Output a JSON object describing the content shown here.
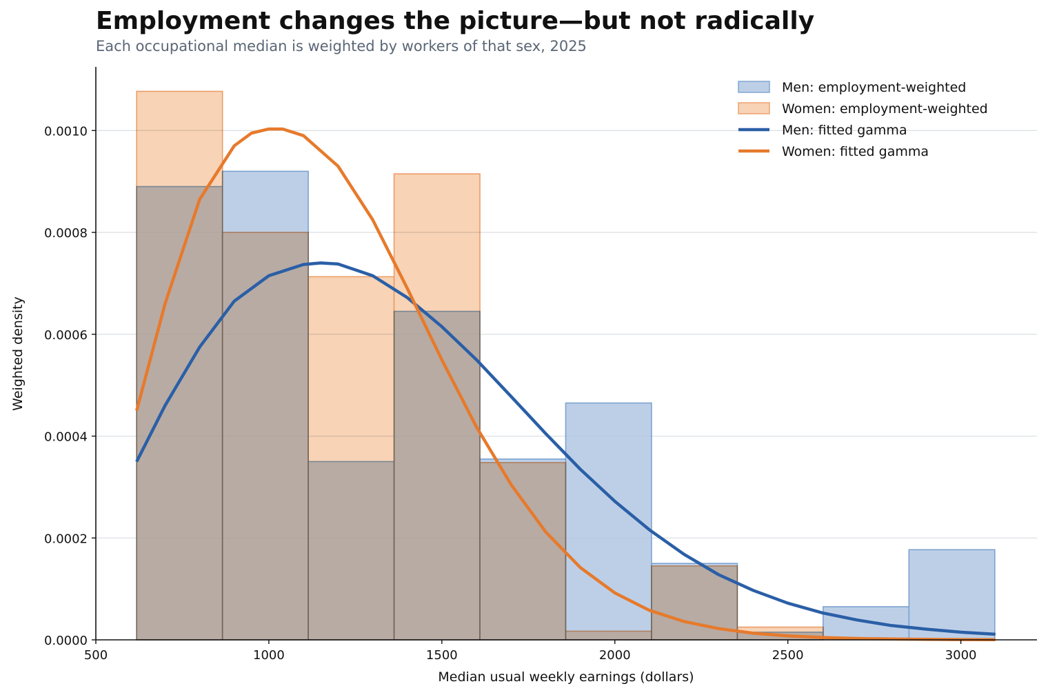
{
  "chart_data": {
    "type": "bar",
    "title": "Employment changes the picture—but not radically",
    "subtitle": "Each occupational median is weighted by workers of that sex, 2025",
    "xlabel": "Median usual weekly earnings (dollars)",
    "ylabel": "Weighted density",
    "xlim": [
      500,
      3220
    ],
    "ylim": [
      0,
      0.001125
    ],
    "xticks": [
      "500",
      "1000",
      "1500",
      "2000",
      "2500",
      "3000"
    ],
    "yticks": [
      "0.0000",
      "0.0002",
      "0.0004",
      "0.0006",
      "0.0008",
      "0.0010"
    ],
    "grid": "horizontal",
    "legend_position": "top-right",
    "bin_edges": [
      618,
      866,
      1114,
      1362,
      1610,
      1858,
      2106,
      2354,
      2602,
      2850,
      3098
    ],
    "series": [
      {
        "name": "Men: employment-weighted",
        "kind": "histogram",
        "color": "#aec5e2",
        "edge_color": "#7ba3d0",
        "values": [
          0.00089,
          0.00092,
          0.00035,
          0.000645,
          0.000355,
          0.000465,
          0.00015,
          1.5e-05,
          6.5e-05,
          0.000177
        ]
      },
      {
        "name": "Women: employment-weighted",
        "kind": "histogram",
        "color": "#f7c9a5",
        "edge_color": "#eb9d68",
        "values": [
          0.001077,
          0.0008,
          0.000713,
          0.000915,
          0.000348,
          1.7e-05,
          0.000145,
          2.5e-05,
          0.0,
          0.0
        ]
      },
      {
        "name": "Men: fitted gamma",
        "kind": "line",
        "color": "#2a5fa6",
        "x": [
          618,
          700,
          800,
          900,
          1000,
          1100,
          1150,
          1200,
          1300,
          1400,
          1500,
          1600,
          1700,
          1800,
          1900,
          2000,
          2100,
          2200,
          2300,
          2400,
          2500,
          2600,
          2700,
          2800,
          2900,
          3000,
          3100
        ],
        "values": [
          0.00035,
          0.00046,
          0.000575,
          0.000665,
          0.000715,
          0.000737,
          0.00074,
          0.000738,
          0.000715,
          0.000672,
          0.000615,
          0.00055,
          0.000478,
          0.000405,
          0.000335,
          0.000272,
          0.000216,
          0.000168,
          0.000128,
          9.7e-05,
          7.2e-05,
          5.3e-05,
          3.9e-05,
          2.8e-05,
          2.1e-05,
          1.5e-05,
          1.1e-05
        ]
      },
      {
        "name": "Women: fitted gamma",
        "kind": "line",
        "color": "#e67a2c",
        "x": [
          618,
          700,
          800,
          900,
          950,
          1000,
          1040,
          1100,
          1200,
          1300,
          1400,
          1500,
          1600,
          1700,
          1800,
          1900,
          2000,
          2100,
          2200,
          2300,
          2400,
          2500,
          2600,
          2700,
          2800,
          2900,
          3000,
          3100
        ],
        "values": [
          0.00045,
          0.00066,
          0.000865,
          0.00097,
          0.000995,
          0.001003,
          0.001003,
          0.00099,
          0.00093,
          0.000825,
          0.00069,
          0.00055,
          0.000418,
          0.000305,
          0.000212,
          0.000142,
          9.2e-05,
          5.8e-05,
          3.6e-05,
          2.2e-05,
          1.3e-05,
          7.8e-06,
          4.6e-06,
          2.7e-06,
          1.6e-06,
          9e-07,
          5e-07,
          3e-07
        ]
      }
    ]
  }
}
